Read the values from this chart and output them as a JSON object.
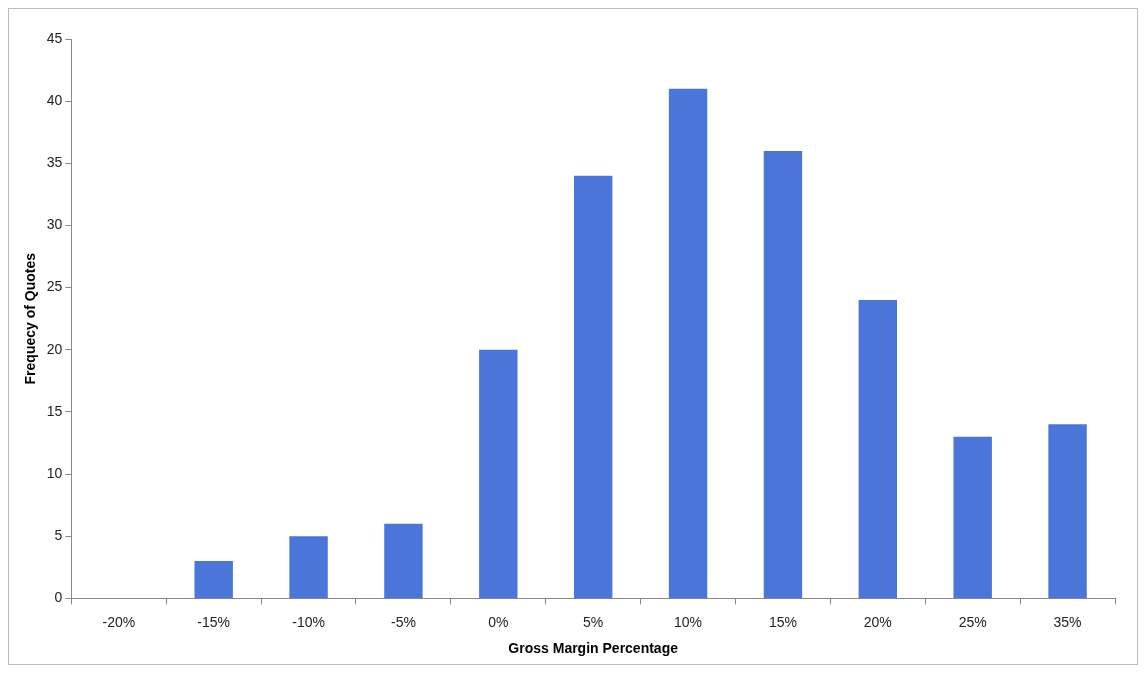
{
  "chart_data": {
    "type": "bar",
    "xlabel": "Gross Margin Percentage",
    "ylabel": "Frequecy of Quotes",
    "categories": [
      "-20%",
      "-15%",
      "-10%",
      "-5%",
      "0%",
      "5%",
      "10%",
      "15%",
      "20%",
      "25%",
      "35%"
    ],
    "values": [
      0,
      3,
      5,
      6,
      20,
      34,
      41,
      36,
      24,
      13,
      14
    ],
    "color": "#4a76d9",
    "ylim": [
      0,
      45
    ],
    "yticks": [
      0,
      5,
      10,
      15,
      20,
      25,
      30,
      35,
      40,
      45
    ],
    "grid": false,
    "legend": false
  }
}
